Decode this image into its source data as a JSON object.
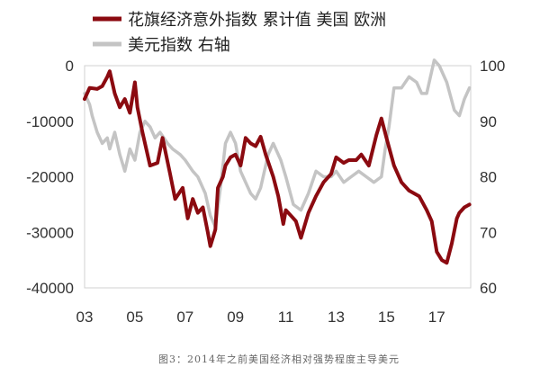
{
  "chart_data": {
    "type": "line",
    "title": "",
    "legend": {
      "position": "top-left",
      "entries": [
        {
          "label": "花旗经济意外指数 累计值  美国 欧洲",
          "color": "#8b0a10",
          "axis": "left"
        },
        {
          "label": "美元指数  右轴",
          "color": "#c4c4c4",
          "axis": "right"
        }
      ]
    },
    "grid": false,
    "x_axis": {
      "ticks": [
        3,
        5,
        7,
        9,
        11,
        13,
        15,
        17
      ],
      "tick_labels": [
        "03",
        "05",
        "07",
        "09",
        "11",
        "13",
        "15",
        "17"
      ],
      "range": [
        2003,
        2018.35
      ]
    },
    "y_left": {
      "range": [
        -40000,
        0
      ],
      "ticks": [
        0,
        -10000,
        -20000,
        -30000,
        -40000
      ],
      "tick_labels": [
        "0",
        "-10000",
        "-20000",
        "-30000",
        "-40000"
      ]
    },
    "y_right": {
      "range": [
        60,
        100
      ],
      "ticks": [
        100,
        90,
        80,
        70,
        60
      ],
      "tick_labels": [
        "100",
        "90",
        "80",
        "70",
        "60"
      ]
    },
    "series": [
      {
        "name": "花旗经济意外指数 累计值  美国 欧洲",
        "axis": "left",
        "color": "#8b0a10",
        "x": [
          2003.0,
          2003.2,
          2003.5,
          2003.7,
          2003.9,
          2004.0,
          2004.2,
          2004.4,
          2004.6,
          2004.8,
          2005.0,
          2005.1,
          2005.3,
          2005.6,
          2005.9,
          2006.1,
          2006.4,
          2006.6,
          2006.9,
          2007.1,
          2007.3,
          2007.5,
          2007.7,
          2007.9,
          2008.0,
          2008.2,
          2008.3,
          2008.5,
          2008.6,
          2008.8,
          2009.0,
          2009.2,
          2009.4,
          2009.6,
          2009.8,
          2010.0,
          2010.2,
          2010.5,
          2010.7,
          2010.9,
          2011.0,
          2011.2,
          2011.4,
          2011.6,
          2011.9,
          2012.2,
          2012.5,
          2012.8,
          2013.0,
          2013.3,
          2013.5,
          2013.8,
          2014.0,
          2014.3,
          2014.6,
          2014.8,
          2015.0,
          2015.3,
          2015.6,
          2015.9,
          2016.1,
          2016.3,
          2016.6,
          2016.8,
          2017.0,
          2017.2,
          2017.4,
          2017.6,
          2017.8,
          2017.9,
          2018.1,
          2018.3
        ],
        "y": [
          -6000,
          -4000,
          -4200,
          -3700,
          -2000,
          -1000,
          -5000,
          -7500,
          -6000,
          -8500,
          -3000,
          -7500,
          -12000,
          -18000,
          -17500,
          -13000,
          -19500,
          -24000,
          -22000,
          -27500,
          -24000,
          -26500,
          -25500,
          -30000,
          -32500,
          -29500,
          -22000,
          -20000,
          -18000,
          -16500,
          -16000,
          -18000,
          -13000,
          -14000,
          -14500,
          -12800,
          -16000,
          -20000,
          -23500,
          -28500,
          -26000,
          -27000,
          -28000,
          -31000,
          -26500,
          -23500,
          -21000,
          -19500,
          -16500,
          -17500,
          -17000,
          -17000,
          -16000,
          -18000,
          -12500,
          -9500,
          -13000,
          -18000,
          -21000,
          -22500,
          -23000,
          -23500,
          -26000,
          -28000,
          -33500,
          -35000,
          -35500,
          -32000,
          -27500,
          -26500,
          -25500,
          -25000
        ]
      },
      {
        "name": "美元指数  右轴",
        "axis": "right",
        "color": "#c4c4c4",
        "x": [
          2003.0,
          2003.2,
          2003.3,
          2003.5,
          2003.7,
          2003.9,
          2004.0,
          2004.2,
          2004.4,
          2004.6,
          2004.8,
          2005.0,
          2005.2,
          2005.4,
          2005.6,
          2005.8,
          2006.0,
          2006.3,
          2006.5,
          2006.8,
          2007.0,
          2007.3,
          2007.5,
          2007.8,
          2008.0,
          2008.2,
          2008.4,
          2008.6,
          2008.8,
          2009.0,
          2009.2,
          2009.4,
          2009.6,
          2009.8,
          2010.0,
          2010.3,
          2010.5,
          2010.8,
          2011.0,
          2011.3,
          2011.6,
          2011.9,
          2012.2,
          2012.5,
          2012.8,
          2013.0,
          2013.3,
          2013.6,
          2013.9,
          2014.2,
          2014.5,
          2014.8,
          2014.95,
          2015.1,
          2015.3,
          2015.6,
          2015.9,
          2016.2,
          2016.4,
          2016.6,
          2016.9,
          2017.1,
          2017.4,
          2017.7,
          2017.9,
          2018.1,
          2018.3
        ],
        "y": [
          95,
          93,
          91,
          88,
          86,
          87,
          85,
          88,
          84,
          81,
          85,
          83,
          88,
          90,
          89,
          87,
          88,
          86,
          85,
          84,
          83,
          81,
          80,
          77,
          73,
          71,
          78,
          86,
          88,
          86,
          81,
          79,
          77,
          76,
          78,
          84,
          86,
          83,
          80,
          75,
          74,
          77,
          81,
          80,
          80,
          81,
          79,
          80,
          81,
          80,
          79,
          80,
          85,
          89,
          96,
          96,
          98,
          97,
          95,
          95,
          101,
          100,
          97,
          92,
          91,
          94,
          96
        ]
      }
    ]
  },
  "caption": "图3：2014年之前美国经济相对强势程度主导美元"
}
